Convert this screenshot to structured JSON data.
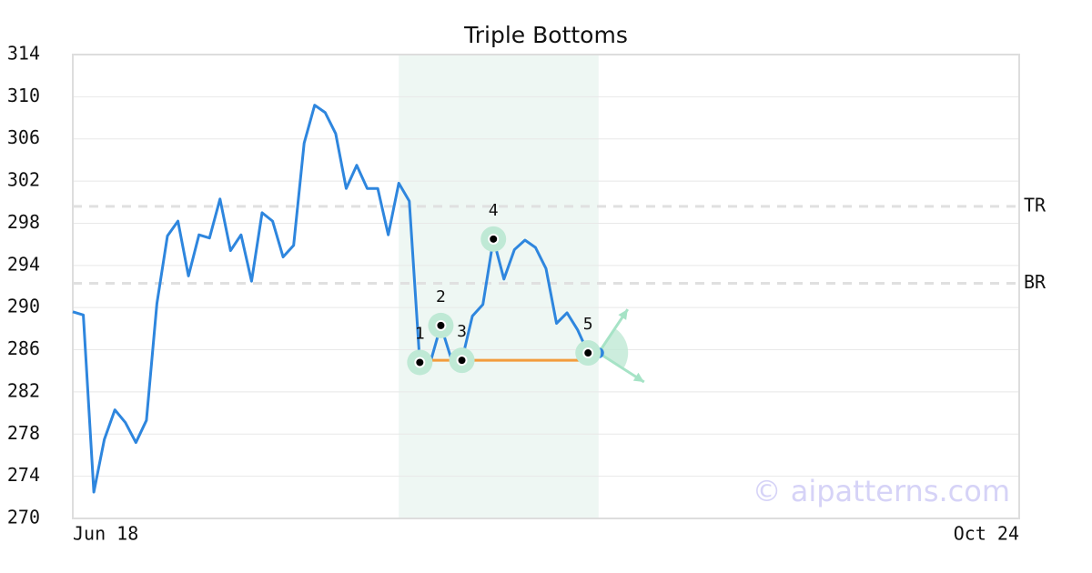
{
  "chart_data": {
    "type": "line",
    "title": "Triple Bottoms",
    "x": [
      0,
      1,
      2,
      3,
      4,
      5,
      6,
      7,
      8,
      9,
      10,
      11,
      12,
      13,
      14,
      15,
      16,
      17,
      18,
      19,
      20,
      21,
      22,
      23,
      24,
      25,
      26,
      27,
      28,
      29,
      30,
      31,
      32,
      33,
      34,
      35,
      36,
      37,
      38,
      39,
      40,
      41,
      42,
      43,
      44,
      45,
      46,
      47,
      48,
      49,
      50
    ],
    "values": [
      289.6,
      289.3,
      272.5,
      277.5,
      280.3,
      279.1,
      277.2,
      279.3,
      290.4,
      296.8,
      298.2,
      293.0,
      296.9,
      296.6,
      300.3,
      295.4,
      296.9,
      292.5,
      299.0,
      298.2,
      294.8,
      295.9,
      305.6,
      309.2,
      308.5,
      306.5,
      301.3,
      303.5,
      301.3,
      301.3,
      296.9,
      301.8,
      300.1,
      284.8,
      284.8,
      288.3,
      285.1,
      285.0,
      289.2,
      290.3,
      296.5,
      292.7,
      295.5,
      296.4,
      295.7,
      293.7,
      288.5,
      289.5,
      287.9,
      285.7,
      285.7
    ],
    "color": "#2e86de",
    "xlim": [
      0,
      90
    ],
    "xticks": [
      {
        "value": 0,
        "label": "Jun 18"
      },
      {
        "value": 90,
        "label": "Oct 24"
      }
    ],
    "ylim": [
      270,
      314
    ],
    "yticks": [
      270,
      274,
      278,
      282,
      286,
      290,
      294,
      298,
      302,
      306,
      310,
      314
    ],
    "grid": true,
    "highlight_range": [
      31,
      50
    ],
    "levels": [
      {
        "label": "TR",
        "value": 299.6
      },
      {
        "label": "BR",
        "value": 292.3
      }
    ],
    "neckline": {
      "x": [
        33,
        49
      ],
      "y": 285.0,
      "color": "#f39c3c"
    },
    "pattern_points": [
      {
        "label": "1",
        "x": 33,
        "y": 284.8
      },
      {
        "label": "2",
        "x": 35,
        "y": 288.3
      },
      {
        "label": "3",
        "x": 37,
        "y": 285.0
      },
      {
        "label": "4",
        "x": 40,
        "y": 296.5
      },
      {
        "label": "5",
        "x": 49,
        "y": 285.7
      }
    ],
    "watermark": "© aipatterns.com"
  }
}
